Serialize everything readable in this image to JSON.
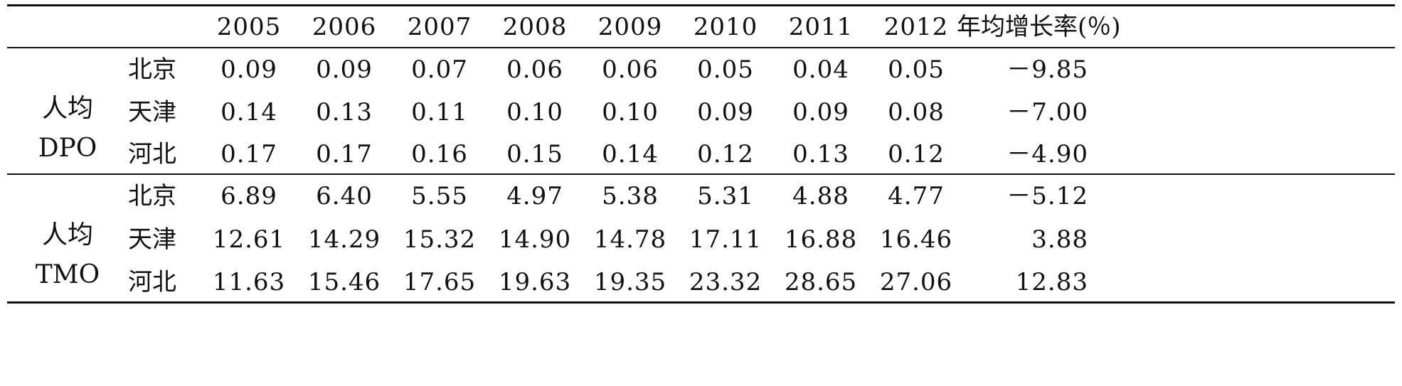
{
  "table": {
    "years": [
      "2005",
      "2006",
      "2007",
      "2008",
      "2009",
      "2010",
      "2011",
      "2012"
    ],
    "growth_header": "年均增长率(％)",
    "groups": [
      {
        "label_line1": "人均",
        "label_line2": "DPO",
        "rows": [
          {
            "region": "北京",
            "values": [
              "0.09",
              "0.09",
              "0.07",
              "0.06",
              "0.06",
              "0.05",
              "0.04",
              "0.05"
            ],
            "growth": "－9.85"
          },
          {
            "region": "天津",
            "values": [
              "0.14",
              "0.13",
              "0.11",
              "0.10",
              "0.10",
              "0.09",
              "0.09",
              "0.08"
            ],
            "growth": "－7.00"
          },
          {
            "region": "河北",
            "values": [
              "0.17",
              "0.17",
              "0.16",
              "0.15",
              "0.14",
              "0.12",
              "0.13",
              "0.12"
            ],
            "growth": "－4.90"
          }
        ]
      },
      {
        "label_line1": "人均",
        "label_line2": "TMO",
        "rows": [
          {
            "region": "北京",
            "values": [
              "6.89",
              "6.40",
              "5.55",
              "4.97",
              "5.38",
              "5.31",
              "4.88",
              "4.77"
            ],
            "growth": "－5.12"
          },
          {
            "region": "天津",
            "values": [
              "12.61",
              "14.29",
              "15.32",
              "14.90",
              "14.78",
              "17.11",
              "16.88",
              "16.46"
            ],
            "growth": "3.88"
          },
          {
            "region": "河北",
            "values": [
              "11.63",
              "15.46",
              "17.65",
              "19.63",
              "19.35",
              "23.32",
              "28.65",
              "27.06"
            ],
            "growth": "12.83"
          }
        ]
      }
    ]
  }
}
